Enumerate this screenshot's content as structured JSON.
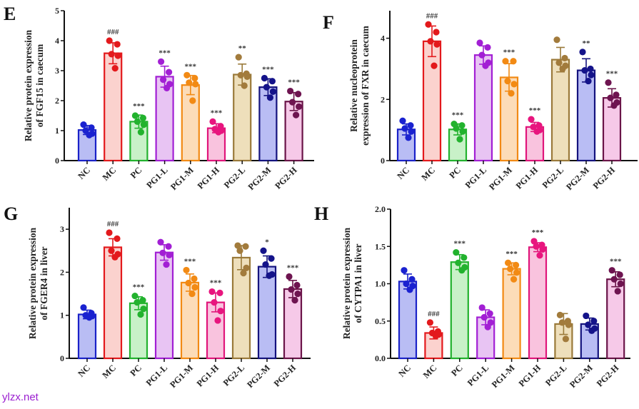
{
  "watermark": "ylzx.net",
  "chart_data": [
    {
      "type": "bar",
      "panel": "E",
      "title": "",
      "xlabel": "",
      "ylabel": [
        "Relative protein expression",
        "of FGF15 in caecum"
      ],
      "ylim": [
        0,
        5
      ],
      "yticks": [
        "0",
        "1",
        "2",
        "3",
        "4",
        "5"
      ],
      "ytick_values": [
        0,
        1,
        2,
        3,
        4,
        5
      ],
      "categories": [
        "NC",
        "MC",
        "PC",
        "PG1-L",
        "PG1-M",
        "PG1-H",
        "PG2-L",
        "PG2-M",
        "PG2-H"
      ],
      "values": [
        1.02,
        3.58,
        1.3,
        2.8,
        2.52,
        1.08,
        2.87,
        2.45,
        1.97
      ],
      "error": [
        0.15,
        0.35,
        0.22,
        0.35,
        0.32,
        0.15,
        0.35,
        0.28,
        0.3
      ],
      "points": [
        [
          1.2,
          1.1,
          1.0,
          0.9,
          0.85
        ],
        [
          4.0,
          3.88,
          3.55,
          3.5,
          3.08
        ],
        [
          1.5,
          1.42,
          1.3,
          1.2,
          0.95
        ],
        [
          3.3,
          2.95,
          2.7,
          2.55,
          2.42
        ],
        [
          2.85,
          2.75,
          2.6,
          2.55,
          2.0
        ],
        [
          1.3,
          1.15,
          1.05,
          1.0,
          0.95
        ],
        [
          3.45,
          2.9,
          2.85,
          2.8,
          2.5
        ],
        [
          2.75,
          2.65,
          2.45,
          2.3,
          2.1
        ],
        [
          2.32,
          2.22,
          1.95,
          1.8,
          1.52
        ]
      ],
      "annotations": [
        "",
        "###",
        "***",
        "***",
        "***",
        "***",
        "**",
        "***",
        "***"
      ]
    },
    {
      "type": "bar",
      "panel": "F",
      "title": "",
      "xlabel": "",
      "ylabel": [
        "Relative nucleoprotein",
        "expression of FXR in caecum"
      ],
      "ylim": [
        0,
        4.9
      ],
      "yticks": [
        "0",
        "2",
        "4"
      ],
      "ytick_values": [
        0,
        2,
        4
      ],
      "categories": [
        "NC",
        "MC",
        "PC",
        "PG1-L",
        "PG1-M",
        "PG1-H",
        "PG2-L",
        "PG2-M",
        "PG2-H"
      ],
      "values": [
        1.02,
        3.9,
        1.02,
        3.45,
        2.72,
        1.1,
        3.3,
        2.95,
        2.05
      ],
      "error": [
        0.18,
        0.5,
        0.18,
        0.3,
        0.45,
        0.15,
        0.4,
        0.38,
        0.3
      ],
      "points": [
        [
          1.3,
          1.15,
          1.05,
          0.95,
          0.75
        ],
        [
          4.45,
          4.2,
          3.9,
          3.8,
          3.1
        ],
        [
          1.2,
          1.15,
          1.05,
          0.95,
          0.7
        ],
        [
          3.85,
          3.7,
          3.45,
          3.2,
          3.1
        ],
        [
          3.25,
          3.25,
          2.6,
          2.5,
          2.2
        ],
        [
          1.35,
          1.15,
          1.1,
          1.0,
          0.95
        ],
        [
          3.95,
          3.35,
          3.2,
          3.1,
          3.0
        ],
        [
          3.55,
          3.0,
          2.95,
          2.8,
          2.6
        ],
        [
          2.55,
          2.15,
          2.05,
          1.9,
          1.8
        ]
      ],
      "annotations": [
        "",
        "###",
        "***",
        "",
        "***",
        "***",
        "",
        "**",
        "***"
      ]
    },
    {
      "type": "bar",
      "panel": "G",
      "title": "",
      "xlabel": "",
      "ylabel": [
        "Relative protein expression",
        "of FGER4 in liver"
      ],
      "ylim": [
        0,
        3.5
      ],
      "yticks": [
        "0",
        "1",
        "2",
        "3"
      ],
      "ytick_values": [
        0,
        1,
        2,
        3
      ],
      "categories": [
        "NC",
        "MC",
        "PC",
        "PG1-L",
        "PG1-M",
        "PG1-H",
        "PG2-L",
        "PG2-M",
        "PG2-H"
      ],
      "values": [
        1.02,
        2.58,
        1.28,
        2.46,
        1.76,
        1.3,
        2.34,
        2.13,
        1.61
      ],
      "error": [
        0.1,
        0.2,
        0.15,
        0.18,
        0.2,
        0.22,
        0.28,
        0.25,
        0.2
      ],
      "points": [
        [
          1.18,
          1.05,
          1.0,
          0.98,
          0.95
        ],
        [
          2.92,
          2.78,
          2.5,
          2.42,
          2.35
        ],
        [
          1.45,
          1.35,
          1.3,
          1.15,
          1.02
        ],
        [
          2.7,
          2.6,
          2.45,
          2.4,
          2.18
        ],
        [
          2.05,
          1.85,
          1.75,
          1.65,
          1.5
        ],
        [
          1.55,
          1.52,
          1.3,
          1.1,
          0.88
        ],
        [
          2.62,
          2.6,
          2.5,
          2.1,
          1.98
        ],
        [
          2.5,
          2.32,
          2.18,
          1.95,
          1.92
        ],
        [
          1.9,
          1.7,
          1.6,
          1.5,
          1.35
        ]
      ],
      "annotations": [
        "",
        "###",
        "***",
        "",
        "***",
        "***",
        "",
        "*",
        "***"
      ]
    },
    {
      "type": "bar",
      "panel": "H",
      "title": "",
      "xlabel": "",
      "ylabel": [
        "Relative protein expression",
        "of CYTPA1 in liver"
      ],
      "ylim": [
        0,
        2.0
      ],
      "yticks": [
        "0.0",
        "0.5",
        "1.0",
        "1.5",
        "2.0"
      ],
      "ytick_values": [
        0,
        0.5,
        1.0,
        1.5,
        2.0
      ],
      "categories": [
        "NC",
        "MC",
        "PC",
        "PG1-L",
        "PG1-M",
        "PG1-H",
        "PG2-L",
        "PG2-M",
        "PG2-H"
      ],
      "values": [
        1.03,
        0.34,
        1.29,
        0.55,
        1.2,
        1.49,
        0.46,
        0.46,
        1.06
      ],
      "error": [
        0.1,
        0.08,
        0.1,
        0.1,
        0.08,
        0.06,
        0.14,
        0.08,
        0.1
      ],
      "points": [
        [
          1.18,
          1.06,
          1.0,
          0.97,
          0.92
        ],
        [
          0.48,
          0.36,
          0.34,
          0.32,
          0.3
        ],
        [
          1.42,
          1.35,
          1.28,
          1.22,
          1.18
        ],
        [
          0.68,
          0.6,
          0.55,
          0.48,
          0.42
        ],
        [
          1.28,
          1.25,
          1.2,
          1.15,
          1.06
        ],
        [
          1.57,
          1.52,
          1.5,
          1.46,
          1.38
        ],
        [
          0.58,
          0.5,
          0.48,
          0.45,
          0.26
        ],
        [
          0.57,
          0.5,
          0.45,
          0.4,
          0.37
        ],
        [
          1.18,
          1.12,
          1.06,
          1.0,
          0.9
        ]
      ],
      "annotations": [
        "",
        "###",
        "***",
        "",
        "***",
        "***",
        "",
        "",
        "***"
      ]
    }
  ],
  "colors": {
    "stroke": [
      "#1a22c8",
      "#e3191c",
      "#22b22e",
      "#a21fd4",
      "#f28a14",
      "#e0157a",
      "#9a7a3a",
      "#14137e",
      "#6a1448"
    ],
    "fill": [
      "#b9bdf4",
      "#fbd2ce",
      "#c8f1c8",
      "#e8c4f3",
      "#fcdcb8",
      "#f9c3de",
      "#eedfbb",
      "#b9bdf4",
      "#f6c9e8"
    ],
    "dot": [
      "#1a22d0",
      "#e3191c",
      "#22b22e",
      "#a21fd4",
      "#f28a14",
      "#e8157e",
      "#a27b3c",
      "#14138a",
      "#6e1450"
    ],
    "axis": "#111111"
  }
}
